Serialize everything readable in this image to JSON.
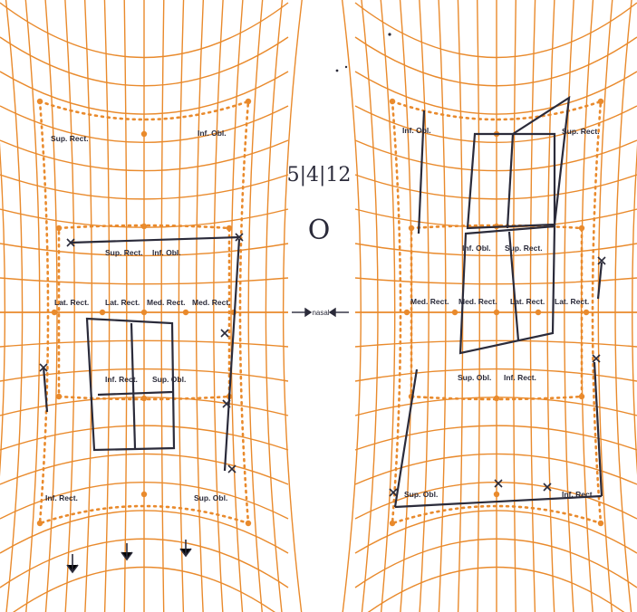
{
  "colors": {
    "grid": "#e98a2c",
    "ink": "#2b2b3a",
    "background": "#ffffff"
  },
  "annotations": {
    "date": "5|4|12",
    "eye_marker": "O",
    "center_label": "nasal"
  },
  "left_chart": {
    "muscles": {
      "sup_rect_top": "Sup. Rect.",
      "inf_obl_top": "Inf. Obl.",
      "sup_rect_inner": "Sup. Rect.",
      "inf_obl_inner": "Inf. Obl.",
      "lat_rect_outer": "Lat. Rect.",
      "lat_rect_inner": "Lat. Rect.",
      "med_rect_inner": "Med. Rect.",
      "med_rect_outer": "Med. Rect.",
      "inf_rect_inner": "Inf. Rect.",
      "sup_obl_inner": "Sup. Obl.",
      "inf_rect_bottom": "Inf. Rect.",
      "sup_obl_bottom": "Sup. Obl."
    }
  },
  "right_chart": {
    "muscles": {
      "inf_obl_top": "Inf. Obl.",
      "sup_rect_top": "Sup. Rect.",
      "inf_obl_inner": "Inf. Obl.",
      "sup_rect_inner": "Sup. Rect.",
      "med_rect_outer": "Med. Rect.",
      "med_rect_inner": "Med. Rect.",
      "lat_rect_inner": "Lat. Rect.",
      "lat_rect_outer": "Lat. Rect.",
      "sup_obl_inner": "Sup. Obl.",
      "inf_rect_inner": "Inf. Rect.",
      "sup_obl_bottom": "Sup. Obl.",
      "inf_rect_bottom": "Inf. Rect."
    }
  }
}
